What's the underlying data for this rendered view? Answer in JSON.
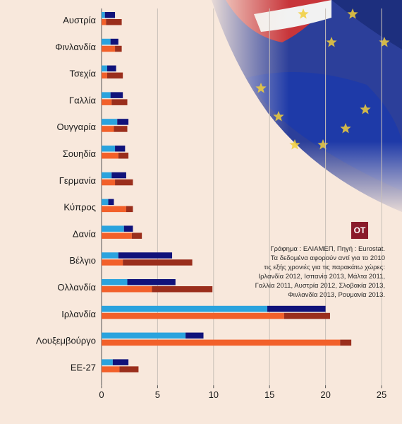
{
  "logo": {
    "text": "OT"
  },
  "note": {
    "lines": [
      "Γράφημα : ΕΛΙΑΜΕΠ, Πηγή : Eurostat.",
      "Τα δεδομένα αφορούν αντί για το 2010",
      "τις εξής χρονιές για τις παρακάτω χώρες:",
      "Ιρλανδία 2012, Ισπανία 2013, Μάλτα 2011,",
      "Γαλλία 2011, Αυστρία 2012, Σλοβακία 2013,",
      "Φινλανδία 2013, Ρουμανία 2013."
    ]
  },
  "colors": {
    "top_light": "#2aa3de",
    "top_dark": "#10127a",
    "bottom_light": "#f2602a",
    "bottom_dark": "#9a2e1c",
    "grid": "#c9c0b8",
    "axis": "#555555"
  },
  "chart_data": {
    "type": "bar",
    "orientation": "horizontal",
    "stacked": true,
    "categories": [
      "Αυστρία",
      "Φινλανδία",
      "Τσεχία",
      "Γαλλία",
      "Ουγγαρία",
      "Σουηδία",
      "Γερμανία",
      "Κύπρος",
      "Δανία",
      "Βέλγιο",
      "Ολλανδία",
      "Ιρλανδία",
      "Λουξεμβούργο",
      "ΕΕ-27"
    ],
    "xlim": [
      0,
      25
    ],
    "xticks": [
      0,
      5,
      10,
      15,
      20,
      25
    ],
    "grid": true,
    "series": [
      {
        "values_light": [
          0.3,
          0.8,
          0.5,
          0.8,
          1.4,
          1.2,
          0.9,
          0.6,
          2.0,
          1.5,
          2.3,
          14.8,
          7.5,
          1.0
        ],
        "values_dark": [
          0.9,
          0.7,
          0.8,
          1.1,
          1.0,
          0.9,
          1.3,
          0.5,
          0.8,
          4.8,
          4.3,
          5.2,
          1.6,
          1.4
        ]
      },
      {
        "values_light": [
          0.4,
          1.2,
          0.5,
          0.9,
          1.1,
          1.5,
          1.2,
          2.2,
          2.7,
          1.9,
          4.5,
          16.3,
          21.3,
          1.6
        ],
        "values_dark": [
          1.4,
          0.6,
          1.4,
          1.4,
          1.2,
          0.9,
          1.6,
          0.6,
          0.9,
          6.2,
          5.4,
          4.1,
          1.0,
          1.7
        ]
      }
    ]
  }
}
